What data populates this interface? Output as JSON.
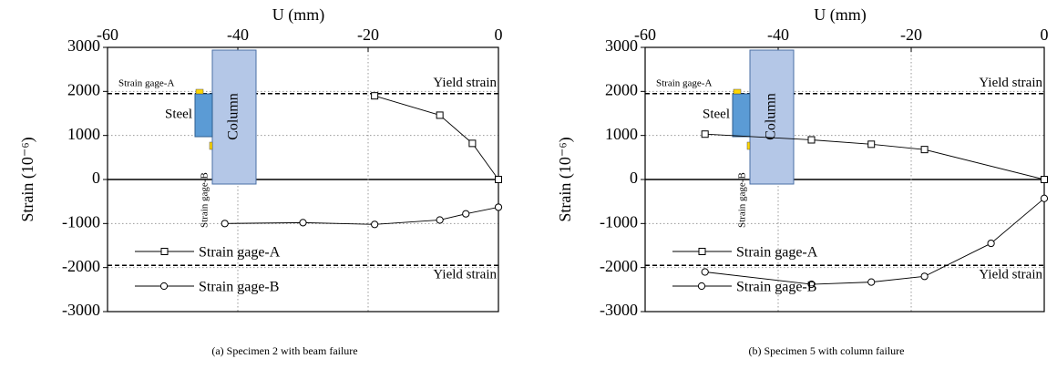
{
  "chart_data": [
    {
      "type": "line",
      "xlabel": "U (mm)",
      "ylabel": "Strain (10⁻⁶)",
      "caption": "(a) Specimen 2 with beam failure",
      "xlim": [
        -60,
        0
      ],
      "xticks": [
        -60,
        -40,
        -20,
        0
      ],
      "ylim": [
        -3000,
        3000
      ],
      "yticks": [
        -3000,
        -2000,
        -1000,
        0,
        1000,
        2000,
        3000
      ],
      "grid": true,
      "legend": "lower left",
      "yield_lines": [
        {
          "value": 1950,
          "label": "Yield strain"
        },
        {
          "value": -1950,
          "label": "Yield strain"
        }
      ],
      "inset": {
        "column": "Column",
        "steel": "Steel",
        "gage_a": "Strain gage-A",
        "gage_b": "Strain gage-B"
      },
      "series": [
        {
          "name": "Strain gage-A",
          "marker": "square",
          "color": "#000000",
          "x": [
            -19,
            -9,
            -4,
            0
          ],
          "values": [
            1900,
            1460,
            820,
            0
          ]
        },
        {
          "name": "Strain gage-B",
          "marker": "circle",
          "color": "#000000",
          "x": [
            -42,
            -30,
            -19,
            -9,
            -5,
            0
          ],
          "values": [
            -1000,
            -980,
            -1020,
            -920,
            -780,
            -630
          ]
        }
      ]
    },
    {
      "type": "line",
      "xlabel": "U (mm)",
      "ylabel": "Strain (10⁻⁶)",
      "caption": "(b) Specimen 5 with column failure",
      "xlim": [
        -60,
        0
      ],
      "xticks": [
        -60,
        -40,
        -20,
        0
      ],
      "ylim": [
        -3000,
        3000
      ],
      "yticks": [
        -3000,
        -2000,
        -1000,
        0,
        1000,
        2000,
        3000
      ],
      "grid": true,
      "legend": "lower left",
      "yield_lines": [
        {
          "value": 1950,
          "label": "Yield strain"
        },
        {
          "value": -1950,
          "label": "Yield strain"
        }
      ],
      "inset": {
        "column": "Column",
        "steel": "Steel",
        "gage_a": "Strain gage-A",
        "gage_b": "Strain gage-B"
      },
      "series": [
        {
          "name": "Strain gage-A",
          "marker": "square",
          "color": "#000000",
          "x": [
            -51,
            -35,
            -26,
            -18,
            0
          ],
          "values": [
            1030,
            900,
            800,
            680,
            0
          ]
        },
        {
          "name": "Strain gage-B",
          "marker": "circle",
          "color": "#000000",
          "x": [
            -51,
            -35,
            -26,
            -18,
            -8,
            0
          ],
          "values": [
            -2100,
            -2380,
            -2330,
            -2200,
            -1450,
            -430
          ]
        }
      ]
    }
  ]
}
